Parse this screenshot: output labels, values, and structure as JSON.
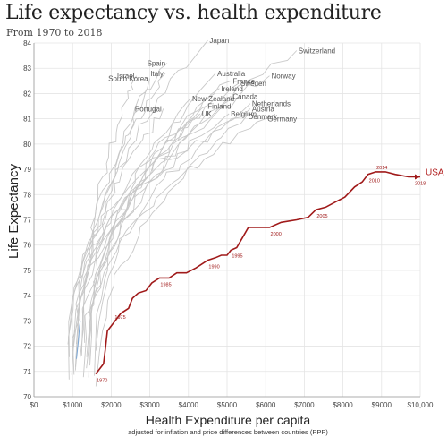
{
  "title": "Life expectancy vs. health expenditure",
  "subtitle": "From 1970 to 2018",
  "chart_data": {
    "type": "line",
    "title": "Life expectancy vs. health expenditure",
    "subtitle": "From 1970 to 2018",
    "xlabel": "Health Expenditure per capita",
    "xlabel_note": "adjusted for inflation and price differences between countries (PPP)",
    "ylabel": "Life Expectancy",
    "xlim": [
      0,
      10000
    ],
    "ylim": [
      70,
      84
    ],
    "x_ticks": [
      0,
      1000,
      2000,
      3000,
      4000,
      5000,
      6000,
      7000,
      8000,
      9000,
      10000
    ],
    "x_tick_labels": [
      "$0",
      "$1000",
      "$2000",
      "$3000",
      "$4000",
      "$5000",
      "$6000",
      "$7000",
      "$8000",
      "$9000",
      "$10,000"
    ],
    "y_ticks": [
      70,
      71,
      72,
      73,
      74,
      75,
      76,
      77,
      78,
      79,
      80,
      81,
      82,
      83,
      84
    ],
    "grid": true,
    "highlight": {
      "name": "USA",
      "color": "#a01a1a",
      "points": [
        {
          "x": 1600,
          "y": 70.9
        },
        {
          "x": 1700,
          "y": 71.1
        },
        {
          "x": 1800,
          "y": 71.3
        },
        {
          "x": 1850,
          "y": 71.9
        },
        {
          "x": 1900,
          "y": 72.6
        },
        {
          "x": 2000,
          "y": 72.8
        },
        {
          "x": 2100,
          "y": 73.0
        },
        {
          "x": 2250,
          "y": 73.3
        },
        {
          "x": 2450,
          "y": 73.5
        },
        {
          "x": 2550,
          "y": 73.9
        },
        {
          "x": 2700,
          "y": 74.1
        },
        {
          "x": 2900,
          "y": 74.2
        },
        {
          "x": 3050,
          "y": 74.5
        },
        {
          "x": 3250,
          "y": 74.7
        },
        {
          "x": 3500,
          "y": 74.7
        },
        {
          "x": 3700,
          "y": 74.9
        },
        {
          "x": 3950,
          "y": 74.9
        },
        {
          "x": 4200,
          "y": 75.1
        },
        {
          "x": 4500,
          "y": 75.4
        },
        {
          "x": 4700,
          "y": 75.5
        },
        {
          "x": 4850,
          "y": 75.6
        },
        {
          "x": 5000,
          "y": 75.6
        },
        {
          "x": 5100,
          "y": 75.8
        },
        {
          "x": 5250,
          "y": 75.9
        },
        {
          "x": 5400,
          "y": 76.3
        },
        {
          "x": 5550,
          "y": 76.7
        },
        {
          "x": 5800,
          "y": 76.7
        },
        {
          "x": 6100,
          "y": 76.7
        },
        {
          "x": 6400,
          "y": 76.9
        },
        {
          "x": 6800,
          "y": 77.0
        },
        {
          "x": 7100,
          "y": 77.1
        },
        {
          "x": 7300,
          "y": 77.4
        },
        {
          "x": 7550,
          "y": 77.5
        },
        {
          "x": 7800,
          "y": 77.7
        },
        {
          "x": 8050,
          "y": 77.9
        },
        {
          "x": 8300,
          "y": 78.3
        },
        {
          "x": 8500,
          "y": 78.5
        },
        {
          "x": 8650,
          "y": 78.8
        },
        {
          "x": 8850,
          "y": 78.9
        },
        {
          "x": 9100,
          "y": 78.9
        },
        {
          "x": 9350,
          "y": 78.8
        },
        {
          "x": 9700,
          "y": 78.7
        },
        {
          "x": 10000,
          "y": 78.7
        }
      ],
      "year_labels": [
        {
          "year": "1970",
          "x": 1600,
          "y": 70.9
        },
        {
          "year": "1975",
          "x": 2000,
          "y": 72.8
        },
        {
          "year": "1985",
          "x": 3250,
          "y": 74.7
        },
        {
          "year": "1990",
          "x": 4500,
          "y": 75.4
        },
        {
          "year": "1995",
          "x": 5100,
          "y": 75.8
        },
        {
          "year": "2000",
          "x": 6100,
          "y": 76.7
        },
        {
          "year": "2005",
          "x": 7300,
          "y": 77.4
        },
        {
          "year": "2010",
          "x": 8650,
          "y": 78.8
        },
        {
          "year": "2014",
          "x": 9100,
          "y": 78.9
        },
        {
          "year": "2018",
          "x": 10000,
          "y": 78.7
        }
      ]
    },
    "other_countries": [
      {
        "name": "Japan",
        "end": {
          "x": 4500,
          "y": 84.1
        }
      },
      {
        "name": "Switzerland",
        "end": {
          "x": 6800,
          "y": 83.7
        }
      },
      {
        "name": "Spain",
        "end": {
          "x": 3450,
          "y": 83.2
        }
      },
      {
        "name": "Italy",
        "end": {
          "x": 3400,
          "y": 82.8
        }
      },
      {
        "name": "Israel",
        "end": {
          "x": 2650,
          "y": 82.7
        }
      },
      {
        "name": "South Korea",
        "end": {
          "x": 3000,
          "y": 82.6
        }
      },
      {
        "name": "Australia",
        "end": {
          "x": 4700,
          "y": 82.8
        }
      },
      {
        "name": "France",
        "end": {
          "x": 5100,
          "y": 82.5
        }
      },
      {
        "name": "Norway",
        "end": {
          "x": 6100,
          "y": 82.7
        }
      },
      {
        "name": "Sweden",
        "end": {
          "x": 5300,
          "y": 82.4
        }
      },
      {
        "name": "Ireland",
        "end": {
          "x": 4800,
          "y": 82.2
        }
      },
      {
        "name": "Canada",
        "end": {
          "x": 5100,
          "y": 81.9
        }
      },
      {
        "name": "New Zealand",
        "end": {
          "x": 4050,
          "y": 81.8
        }
      },
      {
        "name": "Netherlands",
        "end": {
          "x": 5600,
          "y": 81.6
        }
      },
      {
        "name": "Austria",
        "end": {
          "x": 5600,
          "y": 81.4
        }
      },
      {
        "name": "Portugal",
        "end": {
          "x": 3350,
          "y": 81.4
        }
      },
      {
        "name": "Finland",
        "end": {
          "x": 4450,
          "y": 81.5
        }
      },
      {
        "name": "Belgium",
        "end": {
          "x": 5050,
          "y": 81.2
        }
      },
      {
        "name": "UK",
        "end": {
          "x": 4300,
          "y": 81.2
        }
      },
      {
        "name": "Germany",
        "end": {
          "x": 6000,
          "y": 81.0
        }
      },
      {
        "name": "Denmark",
        "end": {
          "x": 5500,
          "y": 81.1
        }
      }
    ]
  }
}
